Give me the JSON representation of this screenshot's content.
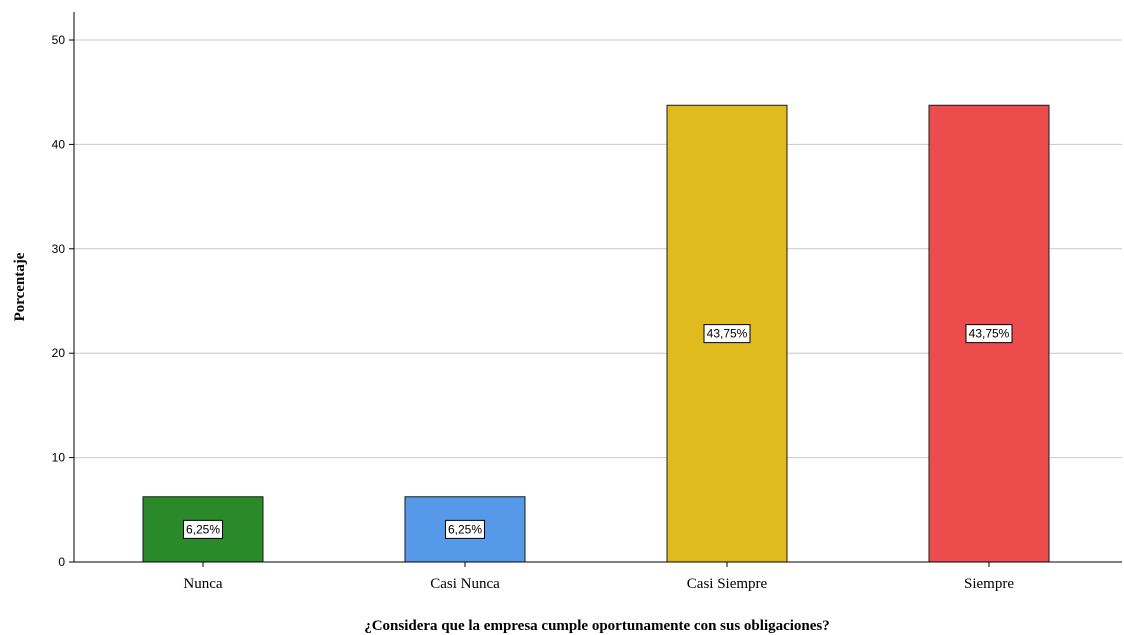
{
  "chart_data": {
    "type": "bar",
    "categories": [
      "Nunca",
      "Casi Nunca",
      "Casi Siempre",
      "Siempre"
    ],
    "values": [
      6.25,
      6.25,
      43.75,
      43.75
    ],
    "data_labels": [
      "6,25%",
      "6,25%",
      "43,75%",
      "43,75%"
    ],
    "colors": [
      "#2a8a2a",
      "#5599e8",
      "#e0bb1e",
      "#ec4c4c"
    ],
    "title": "",
    "xlabel": "¿Considera que la empresa cumple oportunamente con sus obligaciones?",
    "ylabel": "Porcentaje",
    "ylim": [
      0,
      53
    ],
    "yticks": [
      0,
      10,
      20,
      30,
      40,
      50
    ],
    "grid": true,
    "legend": "none"
  }
}
